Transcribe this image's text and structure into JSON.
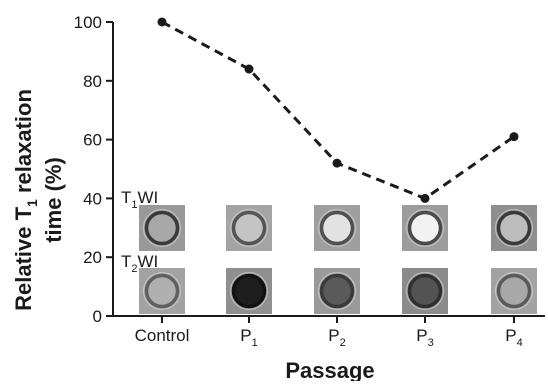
{
  "chart_data": {
    "type": "line",
    "categories": [
      {
        "base": "Control",
        "sub": ""
      },
      {
        "base": "P",
        "sub": "1"
      },
      {
        "base": "P",
        "sub": "2"
      },
      {
        "base": "P",
        "sub": "3"
      },
      {
        "base": "P",
        "sub": "4"
      }
    ],
    "values": [
      100,
      84,
      52,
      40,
      61
    ],
    "ylim": [
      0,
      100
    ],
    "yticks": [
      0,
      20,
      40,
      60,
      80,
      100
    ],
    "ylabel": {
      "line1_a": "Relative T",
      "line1_sub": "1",
      "line1_b": " relaxation",
      "line2": "time (%)"
    },
    "xlabel": "Passage",
    "line_style": "dashed",
    "line_color": "#1a1a1a",
    "grid": false
  },
  "phantom_rows": [
    {
      "label_a": "T",
      "label_sub": "1",
      "label_b": "WI",
      "samples": [
        {
          "bg": "#999999",
          "ring": "#3a3a3a",
          "center": "#a8a8a8"
        },
        {
          "bg": "#a4a4a4",
          "ring": "#555555",
          "center": "#c4c4c4"
        },
        {
          "bg": "#9e9e9e",
          "ring": "#505050",
          "center": "#e2e2e2"
        },
        {
          "bg": "#9c9c9c",
          "ring": "#4a4a4a",
          "center": "#f2f2f2"
        },
        {
          "bg": "#8e8e8e",
          "ring": "#3a3a3a",
          "center": "#bdbdbd"
        }
      ]
    },
    {
      "label_a": "T",
      "label_sub": "2",
      "label_b": "WI",
      "samples": [
        {
          "bg": "#a2a2a2",
          "ring": "#606060",
          "center": "#b0b0b0"
        },
        {
          "bg": "#8f8f8f",
          "ring": "#121212",
          "center": "#1e1e1e"
        },
        {
          "bg": "#9a9a9a",
          "ring": "#3a3a3a",
          "center": "#5a5a5a"
        },
        {
          "bg": "#8b8b8b",
          "ring": "#303030",
          "center": "#535353"
        },
        {
          "bg": "#a2a2a2",
          "ring": "#5a5a5a",
          "center": "#a8a8a8"
        }
      ]
    }
  ]
}
